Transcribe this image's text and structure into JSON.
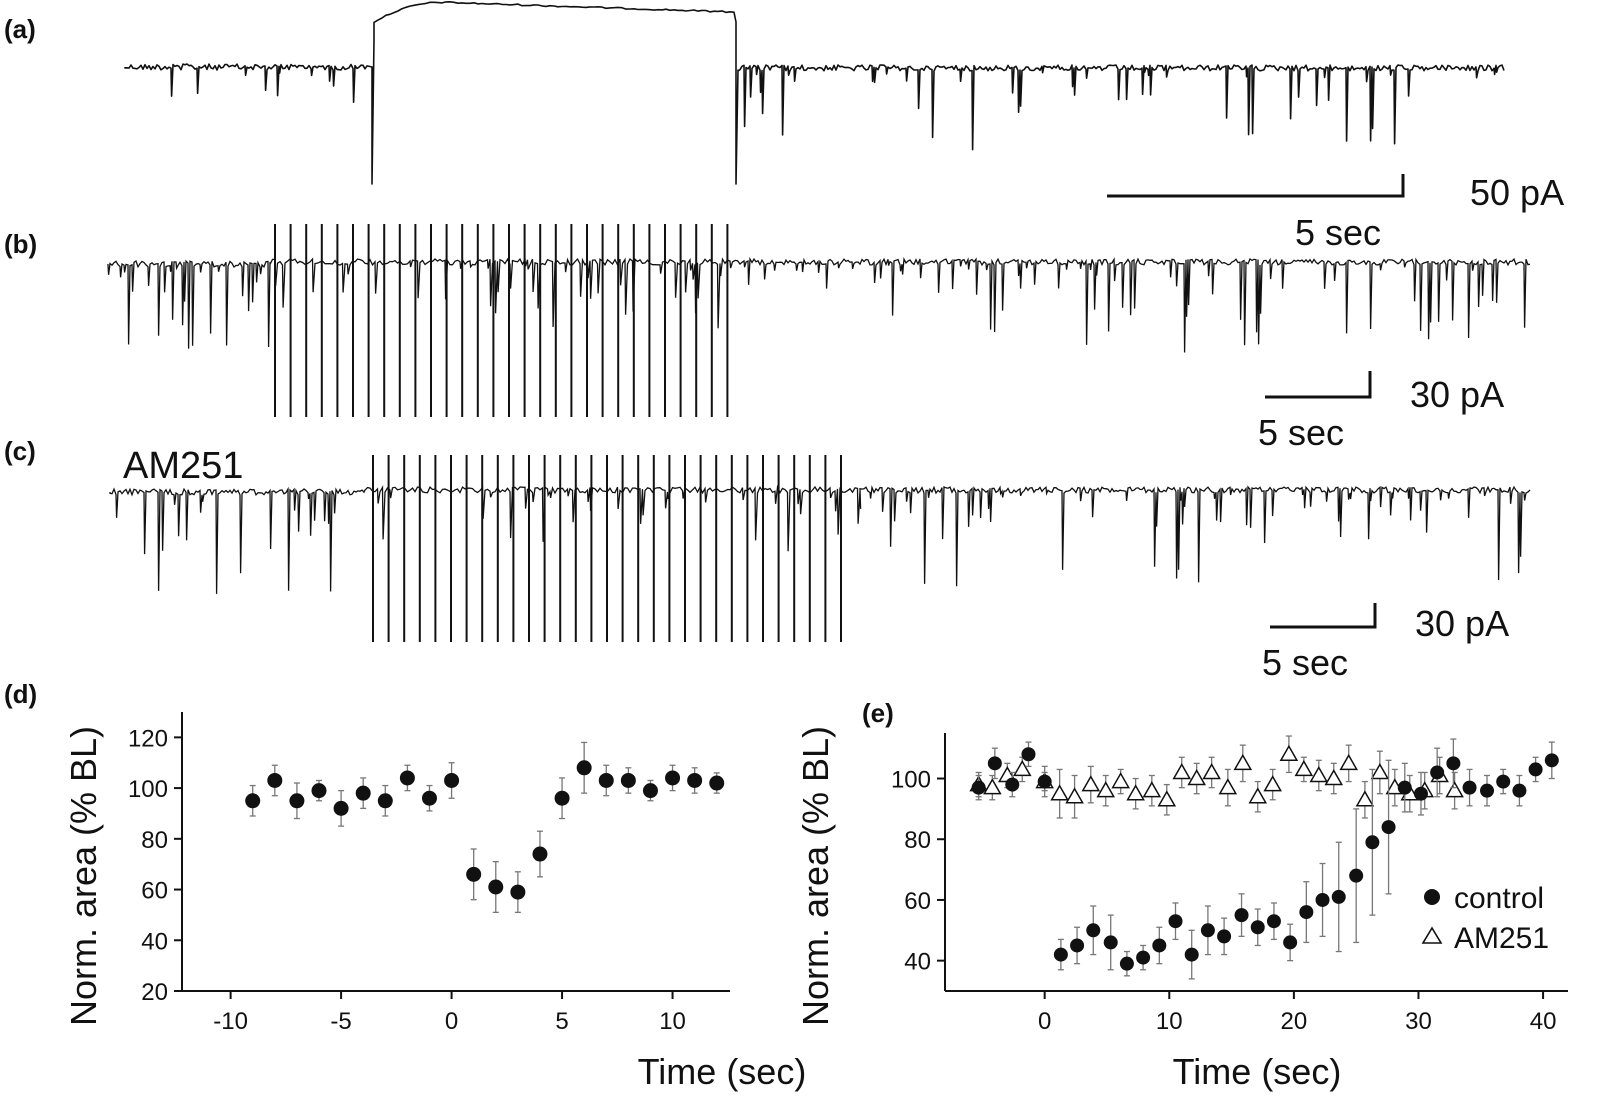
{
  "panels": {
    "a": "(a)",
    "b": "(b)",
    "c": "(c)",
    "d": "(d)",
    "e": "(e)"
  },
  "scalebars": {
    "a_amp": "50 pA",
    "a_time": "5 sec",
    "b_amp": "30 pA",
    "b_time": "5 sec",
    "c_amp": "30 pA",
    "c_time": "5 sec"
  },
  "drug_label": "AM251",
  "colors": {
    "ink": "#111111",
    "errorbar": "#777777"
  },
  "chart_data": [
    {
      "type": "scatter",
      "panel": "d",
      "xlabel": "Time (sec)",
      "ylabel": "Norm. area (% BL)",
      "xlim": [
        -12.2,
        12.6
      ],
      "ylim": [
        20,
        130
      ],
      "xticks": [
        -10,
        -5,
        0,
        5,
        10
      ],
      "yticks": [
        20,
        40,
        60,
        80,
        100,
        120
      ],
      "marker": "filled-circle",
      "x": [
        -9,
        -8,
        -7,
        -6,
        -5,
        -4,
        -3,
        -2,
        -1,
        0,
        1,
        2,
        3,
        4,
        5,
        6,
        7,
        8,
        9,
        10,
        11,
        12
      ],
      "y": [
        95,
        103,
        95,
        99,
        92,
        98,
        95,
        104,
        96,
        103,
        66,
        61,
        59,
        74,
        96,
        108,
        103,
        103,
        99,
        104,
        103,
        102
      ],
      "err": [
        6,
        6,
        7,
        4,
        7,
        6,
        6,
        5,
        5,
        7,
        10,
        10,
        8,
        9,
        8,
        10,
        6,
        5,
        4,
        5,
        5,
        4
      ]
    },
    {
      "type": "scatter",
      "panel": "e",
      "xlabel": "Time (sec)",
      "ylabel": "Norm. area (% BL)",
      "xlim": [
        -8,
        42
      ],
      "ylim": [
        30,
        115
      ],
      "xticks": [
        0,
        10,
        20,
        30,
        40
      ],
      "yticks": [
        40,
        60,
        80,
        100
      ],
      "legend_position": "lower-right",
      "series": [
        {
          "name": "control",
          "marker": "filled-circle",
          "x": [
            -5.3,
            -4.0,
            -2.6,
            -1.3,
            0,
            1.3,
            2.6,
            3.9,
            5.3,
            6.6,
            7.9,
            9.2,
            10.5,
            11.8,
            13.1,
            14.4,
            15.8,
            17.1,
            18.4,
            19.7,
            21.0,
            22.3,
            23.6,
            25.0,
            26.3,
            27.6,
            28.9,
            30.2,
            31.5,
            32.8,
            34.1,
            35.5,
            36.8,
            38.1,
            39.4,
            40.7
          ],
          "y": [
            97,
            105,
            98,
            108,
            99,
            42,
            45,
            50,
            46,
            39,
            41,
            45,
            53,
            42,
            50,
            48,
            55,
            51,
            53,
            46,
            56,
            60,
            61,
            68,
            79,
            84,
            97,
            95,
            102,
            105,
            97,
            96,
            99,
            96,
            103,
            106
          ],
          "err": [
            4,
            5,
            4,
            4,
            3,
            5,
            6,
            8,
            9,
            4,
            4,
            6,
            6,
            8,
            8,
            6,
            7,
            6,
            6,
            6,
            10,
            12,
            18,
            22,
            24,
            22,
            8,
            7,
            8,
            8,
            6,
            5,
            4,
            5,
            4,
            6
          ]
        },
        {
          "name": "AM251",
          "marker": "open-triangle",
          "x": [
            -5.3,
            -4.2,
            -3.0,
            -1.8,
            0,
            1.2,
            2.4,
            3.7,
            4.9,
            6.1,
            7.3,
            8.6,
            9.8,
            11.0,
            12.2,
            13.4,
            14.7,
            15.9,
            17.1,
            18.3,
            19.6,
            20.8,
            22.0,
            23.2,
            24.4,
            25.7,
            26.9,
            28.1,
            29.3,
            30.5,
            31.7,
            32.9
          ],
          "y": [
            98,
            97,
            101,
            103,
            99,
            95,
            94,
            98,
            96,
            99,
            95,
            96,
            93,
            102,
            100,
            102,
            97,
            105,
            94,
            98,
            108,
            103,
            101,
            100,
            105,
            93,
            102,
            97,
            95,
            96,
            101,
            96
          ],
          "err": [
            4,
            4,
            4,
            4,
            5,
            8,
            7,
            6,
            5,
            4,
            5,
            5,
            5,
            5,
            5,
            5,
            6,
            6,
            5,
            5,
            6,
            4,
            5,
            5,
            6,
            6,
            7,
            6,
            6,
            6,
            6,
            6
          ]
        }
      ]
    }
  ]
}
